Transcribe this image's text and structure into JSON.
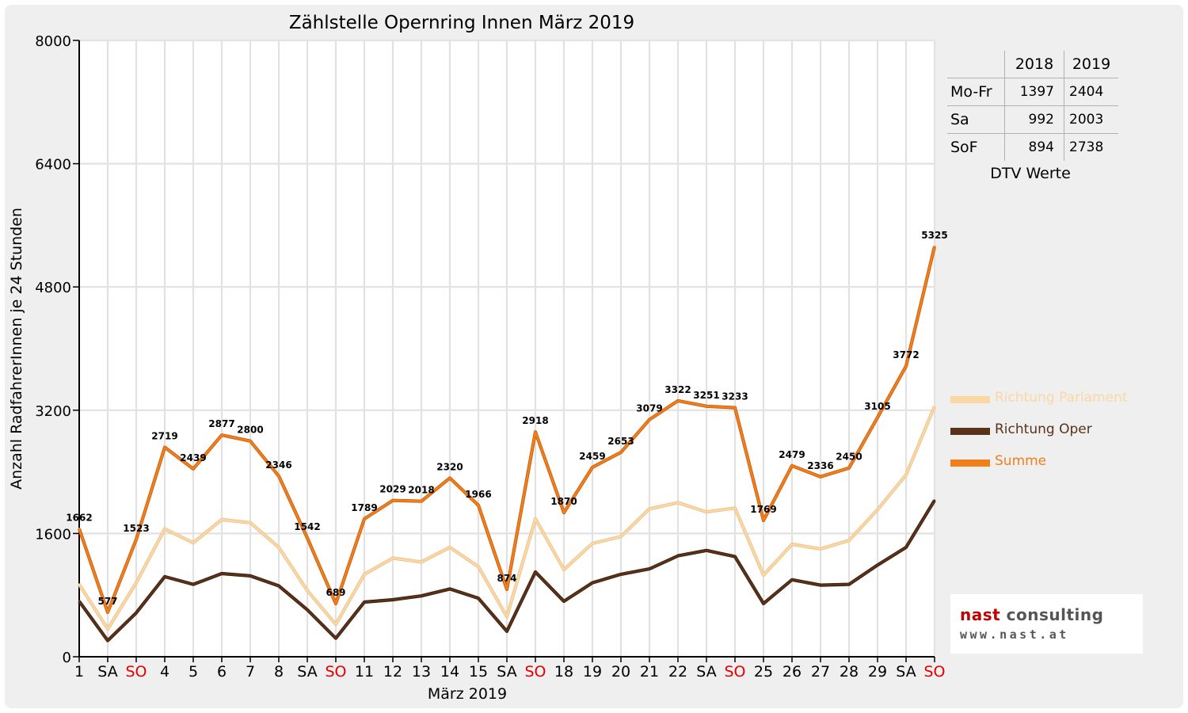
{
  "legend": {
    "items": [
      {
        "label": "Richtung Parlament",
        "color": "#fbd7a3"
      },
      {
        "label": "Richtung Oper",
        "color": "#5a321a"
      },
      {
        "label": "Summe",
        "color": "#f07f1c"
      }
    ]
  },
  "dtv_table": {
    "caption": "DTV Werte",
    "header": [
      "",
      "2018",
      "2019"
    ],
    "rows": [
      {
        "label": "Mo-Fr",
        "v2018": "1397",
        "v2019": "2404"
      },
      {
        "label": "Sa",
        "v2018": "992",
        "v2019": "2003"
      },
      {
        "label": "SoF",
        "v2018": "894",
        "v2019": "2738"
      }
    ]
  },
  "logo": {
    "brand": "nast",
    "rest": " consulting",
    "url": "www.nast.at"
  },
  "chart_data": {
    "type": "line",
    "title": "Zählstelle Opernring Innen März 2019",
    "xlabel": "März 2019",
    "ylabel": "Anzahl RadfahrerInnen je 24 Stunden",
    "ylim": [
      0,
      8000
    ],
    "yticks": [
      0,
      1600,
      3200,
      4800,
      6400,
      8000
    ],
    "grid": true,
    "legend_position": "right",
    "categories": [
      "1",
      "SA",
      "SO",
      "4",
      "5",
      "6",
      "7",
      "8",
      "SA",
      "SO",
      "11",
      "12",
      "13",
      "14",
      "15",
      "SA",
      "SO",
      "18",
      "19",
      "20",
      "21",
      "22",
      "SA",
      "SO",
      "25",
      "26",
      "27",
      "28",
      "29",
      "SA",
      "SO"
    ],
    "weekend_color": "#e00000",
    "series": [
      {
        "name": "Richtung Parlament",
        "color": "#fbd7a3",
        "values": [
          940,
          360,
          960,
          1660,
          1480,
          1780,
          1740,
          1420,
          860,
          420,
          1070,
          1280,
          1230,
          1420,
          1170,
          520,
          1790,
          1130,
          1470,
          1560,
          1920,
          2000,
          1880,
          1930,
          1060,
          1460,
          1400,
          1510,
          1910,
          2360,
          3250
        ]
      },
      {
        "name": "Richtung Oper",
        "color": "#5a321a",
        "values": [
          720,
          210,
          570,
          1040,
          940,
          1080,
          1050,
          920,
          610,
          240,
          710,
          740,
          790,
          880,
          760,
          330,
          1100,
          720,
          960,
          1070,
          1140,
          1310,
          1380,
          1300,
          690,
          1000,
          930,
          940,
          1190,
          1420,
          2030
        ]
      },
      {
        "name": "Summe",
        "color": "#f07f1c",
        "values": [
          1662,
          577,
          1523,
          2719,
          2439,
          2877,
          2800,
          2346,
          1542,
          689,
          1789,
          2029,
          2018,
          2320,
          1966,
          874,
          2918,
          1870,
          2459,
          2653,
          3079,
          3322,
          3251,
          3233,
          1769,
          2479,
          2336,
          2450,
          3105,
          3772,
          5325
        ],
        "labels": [
          "1662",
          "577",
          "1523",
          "2719",
          "2439",
          "2877",
          "2800",
          "2346",
          "1542",
          "689",
          "1789",
          "2029",
          "2018",
          "2320",
          "1966",
          "874",
          "2918",
          "1870",
          "2459",
          "2653",
          "3079",
          "3322",
          "3251",
          "3233",
          "1769",
          "2479",
          "2336",
          "2450",
          "3105",
          "3772",
          "5325"
        ]
      }
    ]
  }
}
